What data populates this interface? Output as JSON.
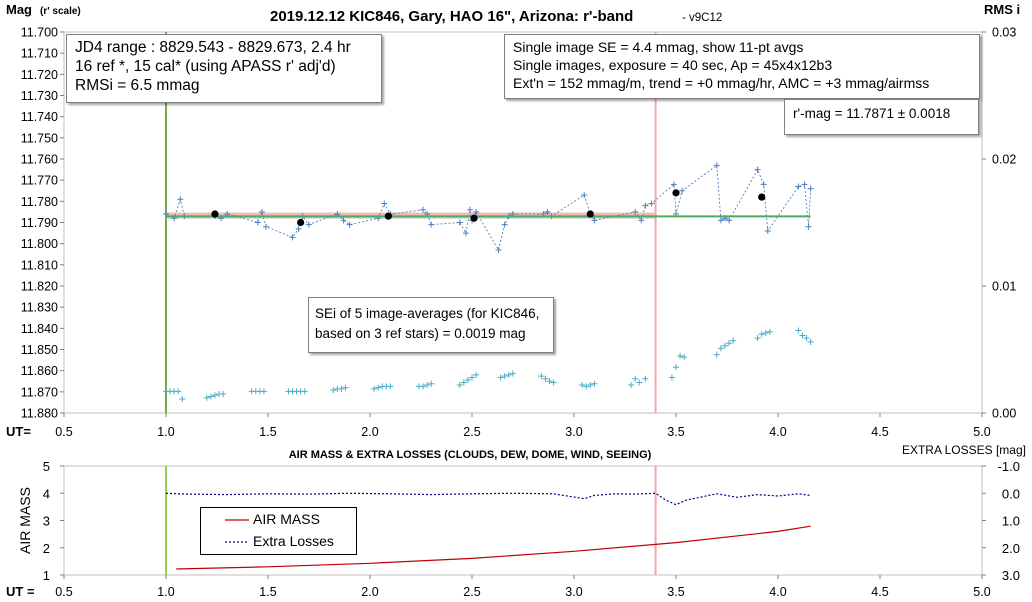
{
  "chart_data": [
    {
      "type": "scatter",
      "title": "2019.12.12 KIC846, Gary, HAO 16\", Arizona: r'-band",
      "title_suffix": "- v9C12",
      "ylabel_left": "Mag",
      "ylabel_left_sub": "(r' scale)",
      "ylabel_right": "RMS i",
      "xlabel": "UT=",
      "xlim": [
        0.5,
        5.0
      ],
      "xticks": [
        "0.5",
        "1.0",
        "1.5",
        "2.0",
        "2.5",
        "3.0",
        "3.5",
        "4.0",
        "4.5",
        "5.0"
      ],
      "ylim_left": [
        11.88,
        11.7
      ],
      "yticks_left": [
        "11.700",
        "11.710",
        "11.720",
        "11.730",
        "11.740",
        "11.750",
        "11.760",
        "11.770",
        "11.780",
        "11.790",
        "11.800",
        "11.810",
        "11.820",
        "11.830",
        "11.840",
        "11.850",
        "11.860",
        "11.870",
        "11.880"
      ],
      "ylim_right": [
        0.0,
        0.03
      ],
      "yticks_right": [
        "0.03",
        "0.02",
        "0.01",
        "0.00"
      ],
      "grid": false,
      "series": [
        {
          "role": "single image magnitudes",
          "style": "blue plus markers, dotted connecting line",
          "color": "#4f81bd",
          "x": [
            1.0,
            1.04,
            1.07,
            1.09,
            1.24,
            1.27,
            1.3,
            1.45,
            1.47,
            1.49,
            1.62,
            1.65,
            1.67,
            1.7,
            1.84,
            1.87,
            1.9,
            2.04,
            2.07,
            2.1,
            2.26,
            2.28,
            2.3,
            2.44,
            2.47,
            2.49,
            2.5,
            2.52,
            2.63,
            2.66,
            2.68,
            2.7,
            2.85,
            2.87,
            2.89,
            3.05,
            3.08,
            3.1,
            3.3,
            3.33,
            3.35,
            3.38,
            3.49,
            3.5,
            3.53,
            3.7,
            3.72,
            3.74,
            3.76,
            3.9,
            3.93,
            3.95,
            4.1,
            4.13,
            4.15,
            4.16
          ],
          "y": [
            11.786,
            11.788,
            11.779,
            11.787,
            11.787,
            11.788,
            11.786,
            11.79,
            11.785,
            11.792,
            11.797,
            11.793,
            11.787,
            11.791,
            11.786,
            11.789,
            11.791,
            11.788,
            11.781,
            11.786,
            11.784,
            11.786,
            11.791,
            11.79,
            11.795,
            11.784,
            11.789,
            11.785,
            11.803,
            11.791,
            11.787,
            11.786,
            11.786,
            11.785,
            11.787,
            11.777,
            11.786,
            11.789,
            11.785,
            11.789,
            11.782,
            11.781,
            11.772,
            11.786,
            11.775,
            11.763,
            11.789,
            11.788,
            11.789,
            11.765,
            11.772,
            11.794,
            11.773,
            11.772,
            11.792,
            11.774
          ]
        },
        {
          "role": "image averages (11-pt avgs)",
          "style": "black filled circles",
          "color": "#000000",
          "x": [
            1.24,
            1.66,
            2.09,
            2.51,
            3.08,
            3.5,
            3.92
          ],
          "y": [
            11.786,
            11.79,
            11.787,
            11.788,
            11.786,
            11.776,
            11.778
          ]
        },
        {
          "role": "RMSi (right axis)",
          "style": "light blue plus markers",
          "color": "#4bacc6",
          "x": [
            1.0,
            1.02,
            1.04,
            1.06,
            1.08,
            1.2,
            1.22,
            1.24,
            1.26,
            1.28,
            1.42,
            1.44,
            1.46,
            1.48,
            1.6,
            1.62,
            1.64,
            1.66,
            1.68,
            1.82,
            1.84,
            1.86,
            1.88,
            2.02,
            2.04,
            2.06,
            2.08,
            2.1,
            2.24,
            2.26,
            2.28,
            2.3,
            2.44,
            2.46,
            2.48,
            2.5,
            2.52,
            2.64,
            2.66,
            2.68,
            2.7,
            2.84,
            2.86,
            2.88,
            2.9,
            3.04,
            3.06,
            3.08,
            3.1,
            3.28,
            3.3,
            3.32,
            3.35,
            3.48,
            3.5,
            3.52,
            3.54,
            3.7,
            3.72,
            3.74,
            3.76,
            3.78,
            3.9,
            3.92,
            3.94,
            3.96,
            4.1,
            4.12,
            4.14,
            4.16
          ],
          "y": [
            0.0017,
            0.0017,
            0.0017,
            0.0017,
            0.0011,
            0.0012,
            0.0013,
            0.0014,
            0.0015,
            0.0015,
            0.0017,
            0.0017,
            0.0017,
            0.0017,
            0.0017,
            0.0017,
            0.0017,
            0.0017,
            0.0017,
            0.0018,
            0.0019,
            0.0019,
            0.002,
            0.0019,
            0.002,
            0.0021,
            0.0021,
            0.0021,
            0.0021,
            0.0021,
            0.0022,
            0.0023,
            0.0022,
            0.0024,
            0.0026,
            0.0028,
            0.003,
            0.0028,
            0.0029,
            0.003,
            0.0031,
            0.0029,
            0.0027,
            0.0025,
            0.0024,
            0.0022,
            0.0021,
            0.0022,
            0.0023,
            0.0022,
            0.0027,
            0.0024,
            0.0027,
            0.0028,
            0.0036,
            0.0045,
            0.0044,
            0.0046,
            0.0051,
            0.0053,
            0.0055,
            0.0057,
            0.0059,
            0.0062,
            0.0063,
            0.0064,
            0.0065,
            0.0061,
            0.0059,
            0.0056
          ]
        },
        {
          "role": "trend line (green)",
          "style": "solid green line",
          "color": "#4ead5b",
          "x": [
            1.0,
            4.16
          ],
          "y": [
            11.7871,
            11.7871
          ]
        },
        {
          "role": "trend band (pink)",
          "style": "pink horizontal band",
          "color": "#f4b6b6",
          "x": [
            1.0,
            3.4
          ],
          "y": [
            11.786,
            11.786
          ]
        },
        {
          "role": "trend band (gray)",
          "style": "gray horizontal band",
          "color": "#bfbfbf",
          "x": [
            1.0,
            3.4
          ],
          "y": [
            11.787,
            11.787
          ]
        }
      ],
      "vlines": [
        {
          "x": 1.0,
          "color": "#70ad47"
        },
        {
          "x": 3.4,
          "color": "#f4a6a6"
        }
      ],
      "annotations": {
        "box_jd": [
          "JD4 range : 8829.543 - 8829.673,  2.4  hr",
          "16 ref *, 15 cal* (using APASS r' adj'd)",
          "RMSi = 6.5 mmag"
        ],
        "box_se": [
          "Single image SE = 4.4 mmag, show  11-pt avgs",
          "Single images, exposure = 40 sec, Ap = 45x4x12b3",
          "Ext'n = 152 mmag/m, trend =  +0 mmag/hr, AMC = +3 mmag/airmss"
        ],
        "box_rmag": "r'-mag = 11.7871 ± 0.0018",
        "box_sei": [
          "SEi of 5 image-averages (for KIC846,",
          "based on 3 ref stars) = 0.0019 mag"
        ]
      }
    },
    {
      "type": "line",
      "title": "AIR MASS & EXTRA LOSSES (CLOUDS, DEW, DOME, WIND, SEEING)",
      "ylabel_left": "AIR MASS",
      "ylabel_right": "EXTRA LOSSES [mag]",
      "xlabel": "UT =",
      "xlim": [
        0.5,
        5.0
      ],
      "xticks": [
        "0.5",
        "1.0",
        "1.5",
        "2.0",
        "2.5",
        "3.0",
        "3.5",
        "4.0",
        "4.5",
        "5.0"
      ],
      "ylim_left": [
        1,
        5
      ],
      "yticks_left": [
        "5",
        "4",
        "3",
        "2",
        "1"
      ],
      "ylim_right": [
        -1.0,
        3.0
      ],
      "yticks_right": [
        "-1.0",
        "0.0",
        "1.0",
        "2.0",
        "3.0"
      ],
      "grid": false,
      "legend": {
        "placement": "center-left",
        "entries": [
          "AIR MASS",
          "Extra Losses"
        ]
      },
      "series": [
        {
          "name": "AIR MASS",
          "color": "#c00000",
          "x": [
            1.05,
            1.5,
            2.0,
            2.5,
            3.0,
            3.5,
            4.0,
            4.16
          ],
          "y": [
            1.22,
            1.3,
            1.43,
            1.61,
            1.87,
            2.19,
            2.6,
            2.79
          ]
        },
        {
          "name": "Extra Losses",
          "color": "#00008b",
          "x": [
            1.0,
            1.1,
            1.3,
            1.5,
            1.7,
            1.9,
            2.1,
            2.3,
            2.5,
            2.7,
            2.9,
            3.05,
            3.1,
            3.2,
            3.3,
            3.4,
            3.45,
            3.5,
            3.55,
            3.7,
            3.8,
            3.9,
            4.0,
            4.1,
            4.16
          ],
          "y": [
            0.0,
            0.03,
            0.05,
            0.02,
            0.03,
            0.0,
            0.02,
            0.05,
            0.02,
            0.0,
            0.02,
            0.2,
            0.08,
            0.02,
            0.03,
            0.0,
            0.25,
            0.42,
            0.25,
            0.02,
            0.15,
            0.05,
            0.1,
            0.02,
            0.08
          ]
        }
      ],
      "vlines": [
        {
          "x": 1.0,
          "color": "#92d050"
        },
        {
          "x": 3.4,
          "color": "#f4a6a6"
        }
      ]
    }
  ]
}
